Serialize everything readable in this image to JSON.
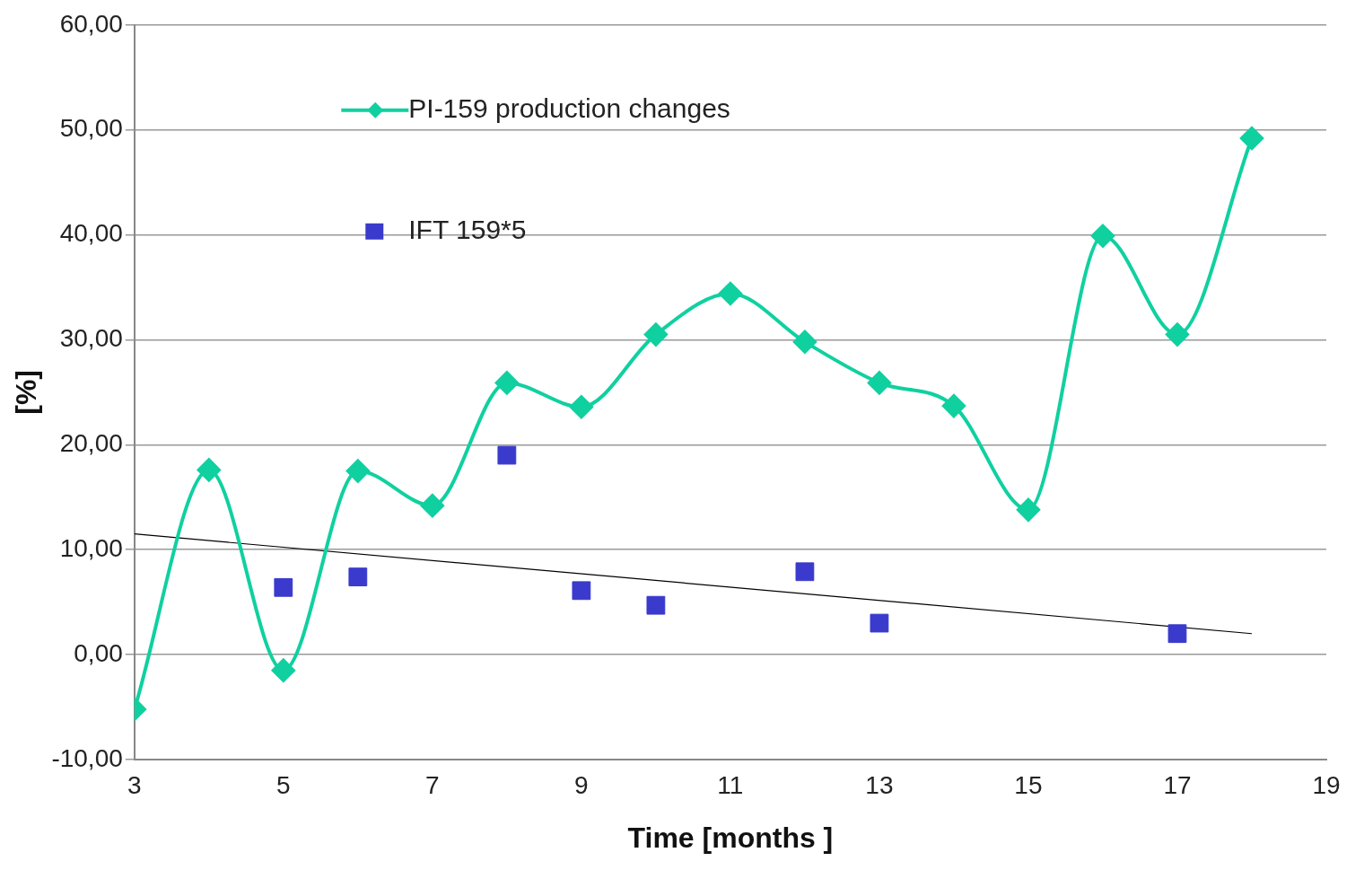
{
  "chart_data": {
    "type": "line",
    "xlabel": "Time [months ]",
    "ylabel": "[%]",
    "xlim": [
      3,
      19
    ],
    "xticks": [
      3,
      5,
      7,
      9,
      11,
      13,
      15,
      17,
      19
    ],
    "ylim": [
      -10,
      60
    ],
    "yticks": [
      {
        "value": -10,
        "label": "-10,00"
      },
      {
        "value": 0,
        "label": "0,00"
      },
      {
        "value": 10,
        "label": "10,00"
      },
      {
        "value": 20,
        "label": "20,00"
      },
      {
        "value": 30,
        "label": "30,00"
      },
      {
        "value": 40,
        "label": "40,00"
      },
      {
        "value": 50,
        "label": "50,00"
      },
      {
        "value": 60,
        "label": "60,00"
      }
    ],
    "grid": "y",
    "legend": "top",
    "x": [
      3,
      4,
      5,
      6,
      7,
      8,
      9,
      10,
      11,
      12,
      13,
      14,
      15,
      16,
      17,
      18
    ],
    "series": [
      {
        "name": "PI-159 production changes",
        "color": "#10d0a0",
        "marker": "diamond",
        "values": [
          -5.2,
          17.6,
          -1.5,
          17.5,
          14.2,
          25.9,
          23.6,
          30.5,
          34.4,
          29.8,
          25.9,
          23.7,
          13.8,
          39.9,
          30.5,
          49.2
        ]
      },
      {
        "name": "IFT 159*5",
        "type": "scatter",
        "color": "#3a3acc",
        "marker": "square",
        "x": [
          5,
          6,
          8,
          9,
          10,
          12,
          13,
          17
        ],
        "values": [
          6.4,
          7.4,
          19.0,
          6.1,
          4.7,
          7.9,
          3.0,
          2.0
        ]
      },
      {
        "color": "#000000",
        "marker": "none",
        "x": [
          3,
          18
        ],
        "values": [
          11.5,
          2.0
        ]
      }
    ]
  }
}
